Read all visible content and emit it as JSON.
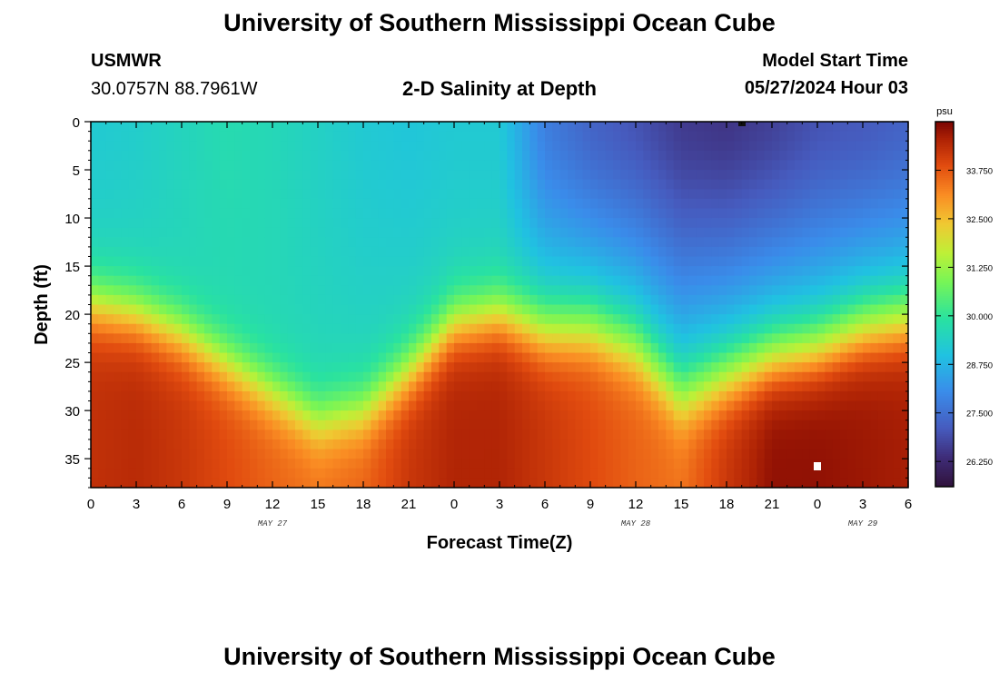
{
  "header": {
    "title": "University of Southern Mississippi Ocean Cube",
    "station": "USMWR",
    "coords": "30.0757N  88.7961W",
    "plot_title": "2-D Salinity at Depth",
    "model_label": "Model Start Time",
    "model_time": "05/27/2024 Hour 03"
  },
  "footer": {
    "title": "University of Southern Mississippi Ocean Cube"
  },
  "chart_data": {
    "type": "heatmap",
    "title": "2-D Salinity at Depth",
    "xlabel": "Forecast Time(Z)",
    "ylabel": "Depth (ft)",
    "x_range_hours": [
      0,
      54
    ],
    "y_range_ft": [
      0,
      38
    ],
    "x_ticks": [
      "0",
      "3",
      "6",
      "9",
      "12",
      "15",
      "18",
      "21",
      "0",
      "3",
      "6",
      "9",
      "12",
      "15",
      "18",
      "21",
      "0",
      "3",
      "6"
    ],
    "x_tick_hours": [
      0,
      3,
      6,
      9,
      12,
      15,
      18,
      21,
      24,
      27,
      30,
      33,
      36,
      39,
      42,
      45,
      48,
      51,
      54
    ],
    "y_ticks": [
      "0",
      "5",
      "10",
      "15",
      "20",
      "25",
      "30",
      "35"
    ],
    "y_tick_values": [
      0,
      5,
      10,
      15,
      20,
      25,
      30,
      35
    ],
    "date_labels": [
      {
        "label": "MAY 27",
        "hour": 12
      },
      {
        "label": "MAY 28",
        "hour": 36
      },
      {
        "label": "MAY 29",
        "hour": 51
      }
    ],
    "colorbar": {
      "unit": "psu",
      "min": 25.6,
      "max": 35.0,
      "ticks": [
        "33.750",
        "32.500",
        "31.250",
        "30.000",
        "28.750",
        "27.500",
        "26.250"
      ],
      "tick_values": [
        33.75,
        32.5,
        31.25,
        30.0,
        28.75,
        27.5,
        26.25
      ]
    },
    "salinity_profile_psu": {
      "description": "estimated salinity (psu) at depths 0-38 ft for hours 0..54 step 3",
      "hours": [
        0,
        3,
        6,
        9,
        12,
        15,
        18,
        21,
        24,
        27,
        30,
        33,
        36,
        39,
        42,
        45,
        48,
        51,
        54
      ],
      "surface_psu": [
        29.2,
        29.3,
        29.5,
        29.7,
        29.6,
        29.4,
        29.2,
        29.1,
        29.2,
        29.2,
        27.8,
        27.3,
        27.0,
        26.6,
        26.5,
        26.7,
        27.0,
        27.1,
        27.3
      ],
      "halocline_depth_ft": [
        19,
        20,
        22,
        25,
        28,
        31,
        30,
        26,
        21,
        20,
        22,
        22,
        24,
        29,
        27,
        25,
        24,
        22,
        21
      ],
      "bottom_psu": [
        34.3,
        34.4,
        34.2,
        33.9,
        33.6,
        33.4,
        33.6,
        34.2,
        34.5,
        34.5,
        34.2,
        33.9,
        33.6,
        33.4,
        34.2,
        34.8,
        34.8,
        34.7,
        34.6
      ]
    }
  }
}
